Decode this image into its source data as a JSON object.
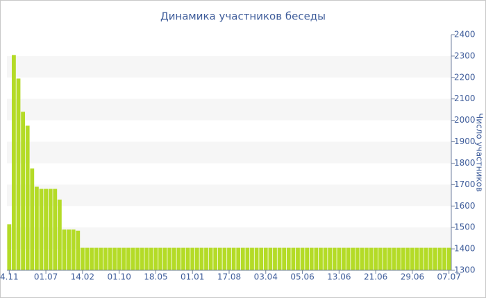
{
  "chart_data": {
    "type": "bar",
    "title": "Динамика участников беседы",
    "y_axis_label": "Число участников",
    "categories": [
      "4.11",
      null,
      null,
      null,
      null,
      null,
      null,
      null,
      "01.07",
      null,
      null,
      null,
      null,
      null,
      null,
      null,
      "14.02",
      null,
      null,
      null,
      null,
      null,
      null,
      null,
      "01.10",
      null,
      null,
      null,
      null,
      null,
      null,
      null,
      "18.05",
      null,
      null,
      null,
      null,
      null,
      null,
      null,
      "01.01",
      null,
      null,
      null,
      null,
      null,
      null,
      null,
      "17.08",
      null,
      null,
      null,
      null,
      null,
      null,
      null,
      "03.04",
      null,
      null,
      null,
      null,
      null,
      null,
      null,
      "05.06",
      null,
      null,
      null,
      null,
      null,
      null,
      null,
      "13.06",
      null,
      null,
      null,
      null,
      null,
      null,
      null,
      "21.06",
      null,
      null,
      null,
      null,
      null,
      null,
      null,
      "29.06",
      null,
      null,
      null,
      null,
      null,
      null,
      null,
      "07.07"
    ],
    "values": [
      1515,
      2305,
      2195,
      2040,
      1975,
      1775,
      1690,
      1680,
      1680,
      1680,
      1680,
      1630,
      1490,
      1490,
      1490,
      1485,
      1405,
      1405,
      1405,
      1405,
      1405,
      1405,
      1405,
      1405,
      1405,
      1405,
      1405,
      1405,
      1405,
      1405,
      1405,
      1405,
      1405,
      1405,
      1405,
      1405,
      1405,
      1405,
      1405,
      1405,
      1405,
      1405,
      1405,
      1405,
      1405,
      1405,
      1405,
      1405,
      1405,
      1405,
      1405,
      1405,
      1405,
      1405,
      1405,
      1405,
      1405,
      1405,
      1405,
      1405,
      1405,
      1405,
      1405,
      1405,
      1405,
      1405,
      1405,
      1405,
      1405,
      1405,
      1405,
      1405,
      1405,
      1405,
      1405,
      1405,
      1405,
      1405,
      1405,
      1405,
      1405,
      1405,
      1405,
      1405,
      1405,
      1405,
      1405,
      1405,
      1405,
      1405,
      1405,
      1405,
      1405,
      1405,
      1405,
      1405,
      1405
    ],
    "color": "#b4db27",
    "ylim": [
      1300,
      2400
    ],
    "yticks": [
      1300,
      1400,
      1500,
      1600,
      1700,
      1800,
      1900,
      2000,
      2100,
      2200,
      2300,
      2400
    ],
    "grid": true
  }
}
